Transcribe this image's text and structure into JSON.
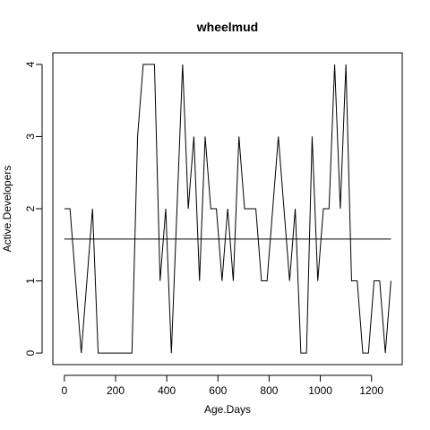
{
  "chart_data": {
    "type": "line",
    "title": "wheelmud",
    "xlabel": "Age.Days",
    "ylabel": "Active.Developers",
    "xlim": [
      -45,
      1320
    ],
    "ylim": [
      -0.16,
      4.16
    ],
    "xticks": [
      0,
      200,
      400,
      600,
      800,
      1000,
      1200
    ],
    "yticks": [
      0,
      1,
      2,
      3,
      4
    ],
    "grid": false,
    "mean_line": 1.58,
    "series": [
      {
        "x": [
          0,
          22,
          44,
          66,
          88,
          110,
          132,
          154,
          176,
          198,
          220,
          242,
          264,
          286,
          308,
          330,
          352,
          374,
          396,
          418,
          440,
          462,
          484,
          506,
          528,
          550,
          572,
          594,
          616,
          638,
          660,
          682,
          704,
          726,
          748,
          770,
          792,
          814,
          836,
          858,
          880,
          902,
          924,
          946,
          968,
          990,
          1012,
          1034,
          1056,
          1078,
          1100,
          1122,
          1144,
          1166,
          1188,
          1210,
          1232,
          1254,
          1276
        ],
        "values": [
          2,
          2,
          1,
          0,
          1,
          2,
          0,
          0,
          0,
          0,
          0,
          0,
          0,
          3,
          4,
          4,
          4,
          1,
          2,
          0,
          2,
          4,
          2,
          3,
          1,
          3,
          2,
          2,
          1,
          2,
          1,
          3,
          2,
          2,
          2,
          1,
          1,
          2,
          3,
          2,
          1,
          2,
          0,
          0,
          3,
          1,
          2,
          2,
          4,
          2,
          4,
          1,
          1,
          0,
          0,
          1,
          1,
          0,
          1
        ]
      }
    ]
  }
}
